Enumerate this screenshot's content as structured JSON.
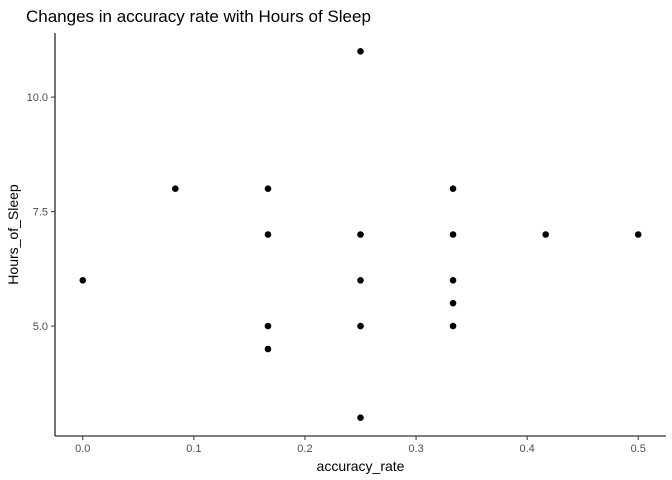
{
  "chart_data": {
    "type": "scatter",
    "title": "Changes in accuracy rate with Hours of Sleep",
    "xlabel": "accuracy_rate",
    "ylabel": "Hours_of_Sleep",
    "xlim": [
      -0.025,
      0.525
    ],
    "ylim": [
      2.6,
      11.4
    ],
    "xticks": [
      0.0,
      0.1,
      0.2,
      0.3,
      0.4,
      0.5
    ],
    "xtick_labels": [
      "0.0",
      "0.1",
      "0.2",
      "0.3",
      "0.4",
      "0.5"
    ],
    "yticks": [
      5.0,
      7.5,
      10.0
    ],
    "ytick_labels": [
      "5.0",
      "7.5",
      "10.0"
    ],
    "grid": false,
    "legend": "none",
    "point_color": "#000000",
    "points": [
      {
        "x": 0.0,
        "y": 6.0
      },
      {
        "x": 0.0833,
        "y": 8.0
      },
      {
        "x": 0.1667,
        "y": 8.0
      },
      {
        "x": 0.1667,
        "y": 7.0
      },
      {
        "x": 0.1667,
        "y": 5.0
      },
      {
        "x": 0.1667,
        "y": 4.5
      },
      {
        "x": 0.25,
        "y": 11.0
      },
      {
        "x": 0.25,
        "y": 7.0
      },
      {
        "x": 0.25,
        "y": 6.0
      },
      {
        "x": 0.25,
        "y": 5.0
      },
      {
        "x": 0.25,
        "y": 3.0
      },
      {
        "x": 0.3333,
        "y": 8.0
      },
      {
        "x": 0.3333,
        "y": 7.0
      },
      {
        "x": 0.3333,
        "y": 6.0
      },
      {
        "x": 0.3333,
        "y": 5.5
      },
      {
        "x": 0.3333,
        "y": 5.0
      },
      {
        "x": 0.4167,
        "y": 7.0
      },
      {
        "x": 0.5,
        "y": 7.0
      }
    ]
  }
}
